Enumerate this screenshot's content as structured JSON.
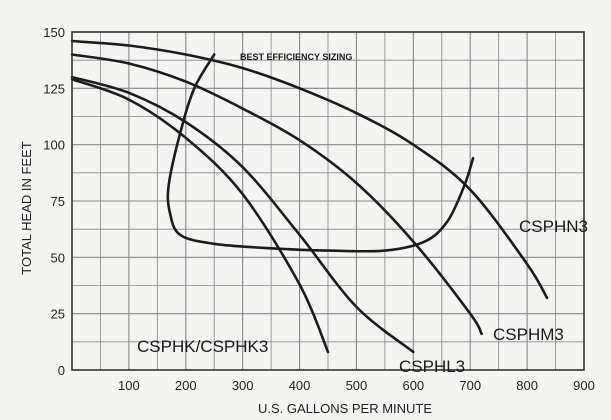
{
  "chart_data": {
    "type": "line",
    "xlabel": "U.S. GALLONS PER MINUTE",
    "ylabel": "TOTAL HEAD IN FEET",
    "xlim": [
      0,
      900
    ],
    "ylim": [
      0,
      150
    ],
    "x_ticks": [
      100,
      200,
      300,
      400,
      500,
      600,
      700,
      800,
      900
    ],
    "y_ticks": [
      0,
      25,
      50,
      75,
      100,
      125,
      150
    ],
    "grid": true,
    "annotation": "BEST EFFICIENCY SIZING",
    "series": [
      {
        "name": "CSPHK/CSPHK3",
        "points": [
          [
            0,
            129
          ],
          [
            100,
            120
          ],
          [
            200,
            103
          ],
          [
            300,
            78
          ],
          [
            400,
            38
          ],
          [
            450,
            8
          ]
        ]
      },
      {
        "name": "CSPHL3",
        "points": [
          [
            0,
            130
          ],
          [
            100,
            123
          ],
          [
            200,
            110
          ],
          [
            300,
            90
          ],
          [
            400,
            60
          ],
          [
            500,
            28
          ],
          [
            600,
            8
          ]
        ]
      },
      {
        "name": "CSPHM3",
        "points": [
          [
            0,
            140
          ],
          [
            100,
            136
          ],
          [
            200,
            128
          ],
          [
            300,
            116
          ],
          [
            400,
            102
          ],
          [
            500,
            83
          ],
          [
            600,
            57
          ],
          [
            700,
            25
          ],
          [
            720,
            16
          ]
        ]
      },
      {
        "name": "CSPHN3",
        "points": [
          [
            0,
            146
          ],
          [
            100,
            144
          ],
          [
            200,
            140
          ],
          [
            300,
            134
          ],
          [
            400,
            125
          ],
          [
            500,
            114
          ],
          [
            600,
            100
          ],
          [
            700,
            80
          ],
          [
            800,
            47
          ],
          [
            835,
            32
          ]
        ]
      }
    ],
    "efficiency_curve": [
      [
        250,
        140
      ],
      [
        215,
        125
      ],
      [
        190,
        105
      ],
      [
        170,
        82
      ],
      [
        172,
        70
      ],
      [
        190,
        60
      ],
      [
        250,
        56
      ],
      [
        350,
        54
      ],
      [
        450,
        53
      ],
      [
        550,
        53
      ],
      [
        620,
        57
      ],
      [
        660,
        66
      ],
      [
        690,
        82
      ],
      [
        705,
        94
      ]
    ]
  }
}
